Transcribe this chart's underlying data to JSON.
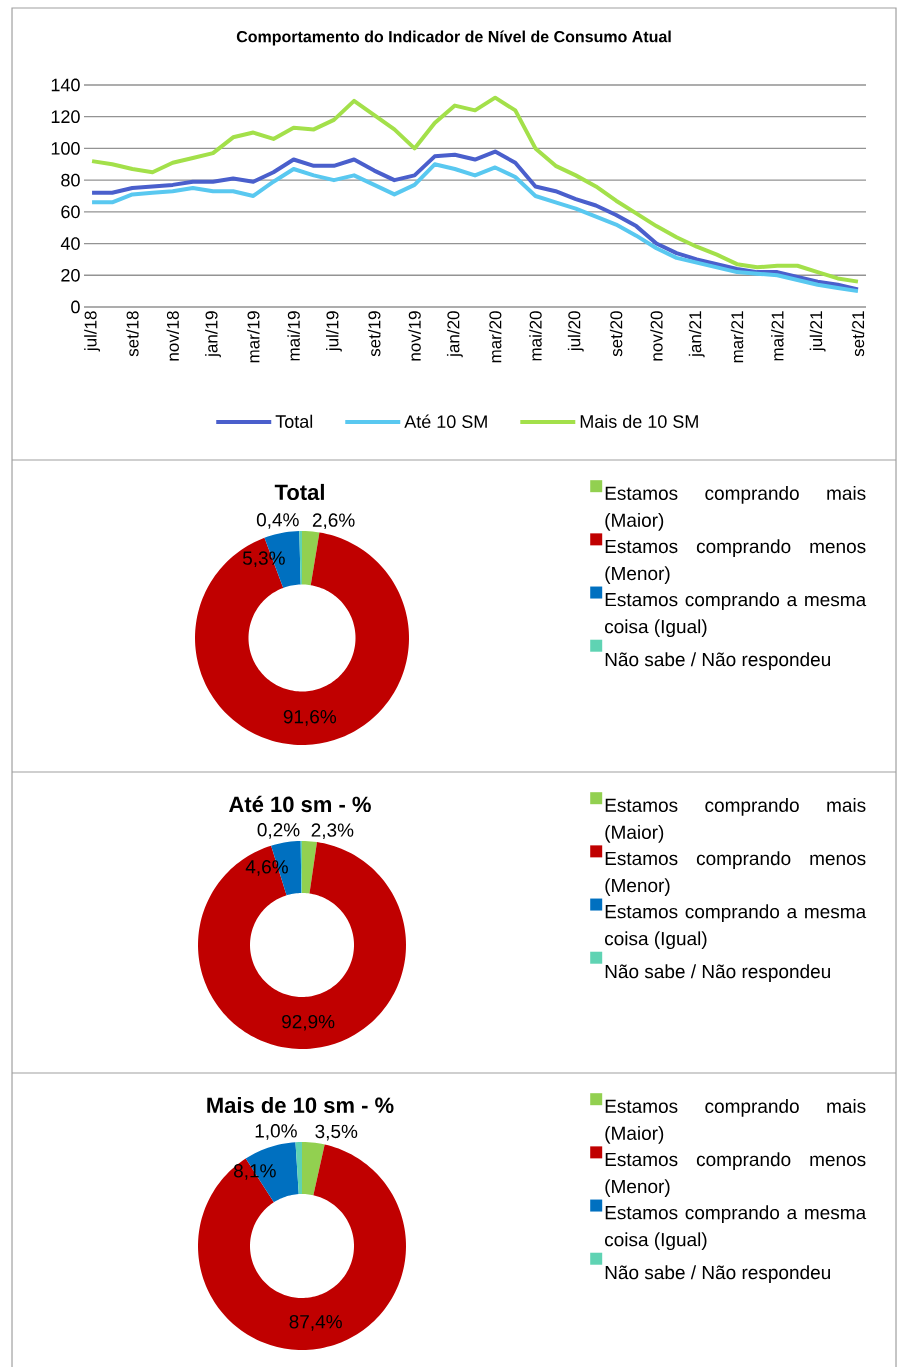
{
  "chart_data": [
    {
      "type": "line",
      "title": "Comportamento do Indicador de Nível de Consumo Atual",
      "categories": [
        "jul/18",
        null,
        "set/18",
        null,
        "nov/18",
        null,
        "jan/19",
        null,
        "mar/19",
        null,
        "mai/19",
        null,
        "jul/19",
        null,
        "set/19",
        null,
        "nov/19",
        null,
        "jan/20",
        null,
        "mar/20",
        null,
        "mai/20",
        null,
        "jul/20",
        null,
        "set/20",
        null,
        "nov/20",
        null,
        "jan/21",
        null,
        "mar/21",
        null,
        "mai/21",
        null,
        "jul/21",
        null,
        "set/21"
      ],
      "series": [
        {
          "name": "Total",
          "color": "#4a5fcc",
          "values": [
            72,
            72,
            75,
            76,
            77,
            79,
            79,
            81,
            79,
            85,
            93,
            89,
            89,
            93,
            86,
            80,
            83,
            95,
            96,
            93,
            98,
            91,
            76,
            73,
            68,
            64,
            58,
            51,
            40,
            34,
            30,
            27,
            24,
            22,
            22,
            19,
            16,
            14,
            11
          ]
        },
        {
          "name": "Até 10 SM",
          "color": "#59c8f0",
          "values": [
            66,
            66,
            71,
            72,
            73,
            75,
            73,
            73,
            70,
            79,
            87,
            83,
            80,
            83,
            77,
            71,
            77,
            90,
            87,
            83,
            88,
            82,
            70,
            66,
            62,
            57,
            52,
            45,
            37,
            31,
            28,
            25,
            22,
            21,
            20,
            17,
            14,
            12,
            10
          ]
        },
        {
          "name": "Mais de 10 SM",
          "color": "#a3e04a",
          "values": [
            92,
            90,
            87,
            85,
            91,
            94,
            97,
            107,
            110,
            106,
            113,
            112,
            118,
            130,
            121,
            112,
            100,
            116,
            127,
            124,
            132,
            124,
            100,
            89,
            83,
            76,
            67,
            59,
            51,
            44,
            38,
            33,
            27,
            25,
            26,
            26,
            22,
            18,
            16
          ]
        }
      ],
      "ylim": [
        0,
        140
      ],
      "yticks": [
        0,
        20,
        40,
        60,
        80,
        100,
        120,
        140
      ],
      "grid": "y",
      "legend": "bottom"
    },
    {
      "type": "donut",
      "title": "Total",
      "categories": [
        "Estamos comprando mais (Maior)",
        "Estamos comprando menos (Menor)",
        "Estamos comprando a mesma coisa (Igual)",
        "Não sabe / Não respondeu"
      ],
      "values": [
        2.6,
        91.6,
        5.3,
        0.4
      ],
      "colors": [
        "#92d050",
        "#c00000",
        "#0070c0",
        "#5fd3b3"
      ],
      "value_labels": [
        "2,6%",
        "91,6%",
        "5,3%",
        "0,4%"
      ],
      "legend": "right"
    },
    {
      "type": "donut",
      "title": "Até 10 sm - %",
      "categories": [
        "Estamos comprando mais (Maior)",
        "Estamos comprando menos (Menor)",
        "Estamos comprando a mesma coisa (Igual)",
        "Não sabe / Não respondeu"
      ],
      "values": [
        2.3,
        92.9,
        4.6,
        0.2
      ],
      "colors": [
        "#92d050",
        "#c00000",
        "#0070c0",
        "#5fd3b3"
      ],
      "value_labels": [
        "2,3%",
        "92,9%",
        "4,6%",
        "0,2%"
      ],
      "legend": "right"
    },
    {
      "type": "donut",
      "title": "Mais de 10 sm - %",
      "categories": [
        "Estamos comprando mais (Maior)",
        "Estamos comprando menos (Menor)",
        "Estamos comprando a mesma coisa (Igual)",
        "Não sabe / Não respondeu"
      ],
      "values": [
        3.5,
        87.4,
        8.1,
        1.0
      ],
      "colors": [
        "#92d050",
        "#c00000",
        "#0070c0",
        "#5fd3b3"
      ],
      "value_labels": [
        "3,5%",
        "87,4%",
        "8,1%",
        "1,0%"
      ],
      "legend": "right"
    }
  ]
}
